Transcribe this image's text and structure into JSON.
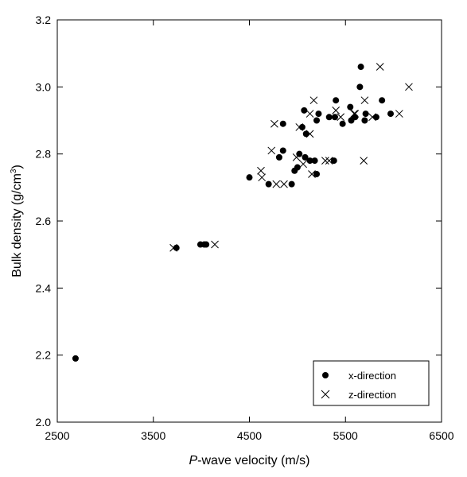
{
  "chart_data": {
    "type": "scatter",
    "xlabel": {
      "italic": "P",
      "rest": "-wave velocity (m/s)"
    },
    "ylabel": {
      "main": "Bulk density (g/cm",
      "sup": "3",
      "end": ")"
    },
    "xlim": [
      2500,
      6500
    ],
    "ylim": [
      2.0,
      3.2
    ],
    "x_ticks": [
      2500,
      3500,
      4500,
      5500,
      6500
    ],
    "x_tick_labels": [
      "2500",
      "3500",
      "4500",
      "5500",
      "6500"
    ],
    "y_ticks": [
      2.0,
      2.2,
      2.4,
      2.6,
      2.8,
      3.0,
      3.2
    ],
    "y_tick_labels": [
      "2.0",
      "2.2",
      "2.4",
      "2.6",
      "2.8",
      "3.0",
      "3.2"
    ],
    "grid": false,
    "legend_position": "bottom-right",
    "series": [
      {
        "name": "x-direction",
        "marker": "filled-circle",
        "color": "#000000",
        "points": [
          [
            2690,
            2.19
          ],
          [
            3740,
            2.52
          ],
          [
            3990,
            2.53
          ],
          [
            4030,
            2.53
          ],
          [
            4050,
            2.53
          ],
          [
            4500,
            2.73
          ],
          [
            4700,
            2.71
          ],
          [
            4810,
            2.79
          ],
          [
            4850,
            2.89
          ],
          [
            4850,
            2.81
          ],
          [
            4940,
            2.71
          ],
          [
            4970,
            2.75
          ],
          [
            5000,
            2.76
          ],
          [
            5020,
            2.8
          ],
          [
            5050,
            2.88
          ],
          [
            5070,
            2.93
          ],
          [
            5080,
            2.79
          ],
          [
            5090,
            2.86
          ],
          [
            5130,
            2.78
          ],
          [
            5180,
            2.78
          ],
          [
            5200,
            2.74
          ],
          [
            5200,
            2.9
          ],
          [
            5220,
            2.92
          ],
          [
            5330,
            2.91
          ],
          [
            5380,
            2.78
          ],
          [
            5390,
            2.91
          ],
          [
            5400,
            2.96
          ],
          [
            5470,
            2.89
          ],
          [
            5550,
            2.94
          ],
          [
            5560,
            2.9
          ],
          [
            5600,
            2.91
          ],
          [
            5650,
            3.0
          ],
          [
            5660,
            3.06
          ],
          [
            5700,
            2.9
          ],
          [
            5710,
            2.92
          ],
          [
            5820,
            2.91
          ],
          [
            5880,
            2.96
          ],
          [
            5970,
            2.92
          ]
        ]
      },
      {
        "name": "z-direction",
        "marker": "cross",
        "color": "#000000",
        "points": [
          [
            3710,
            2.52
          ],
          [
            4140,
            2.53
          ],
          [
            4620,
            2.75
          ],
          [
            4630,
            2.73
          ],
          [
            4730,
            2.81
          ],
          [
            4760,
            2.89
          ],
          [
            4780,
            2.71
          ],
          [
            4860,
            2.71
          ],
          [
            4990,
            2.79
          ],
          [
            5020,
            2.88
          ],
          [
            5060,
            2.77
          ],
          [
            5130,
            2.86
          ],
          [
            5130,
            2.92
          ],
          [
            5150,
            2.74
          ],
          [
            5170,
            2.96
          ],
          [
            5290,
            2.78
          ],
          [
            5330,
            2.78
          ],
          [
            5400,
            2.93
          ],
          [
            5450,
            2.91
          ],
          [
            5590,
            2.92
          ],
          [
            5600,
            2.92
          ],
          [
            5690,
            2.78
          ],
          [
            5700,
            2.96
          ],
          [
            5780,
            2.91
          ],
          [
            5860,
            3.06
          ],
          [
            6060,
            2.92
          ],
          [
            6160,
            3.0
          ]
        ]
      }
    ]
  }
}
